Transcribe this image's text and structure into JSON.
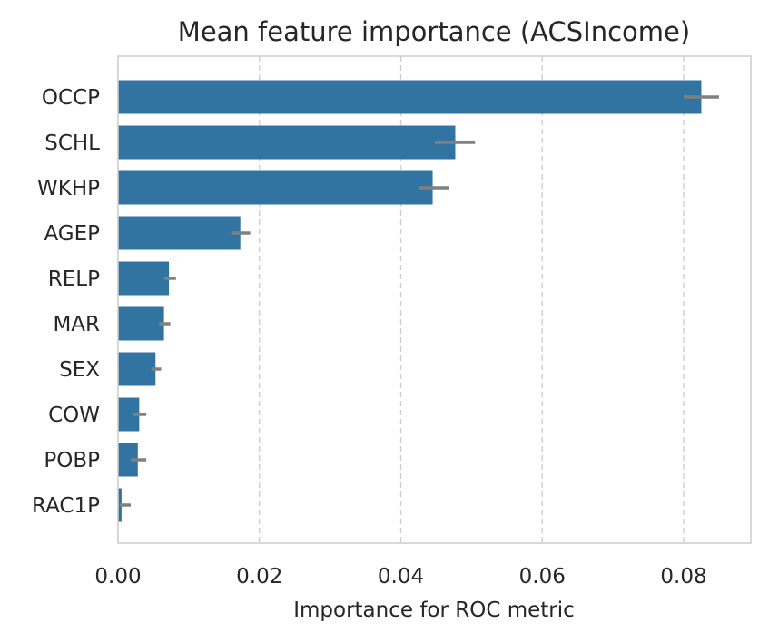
{
  "chart_data": {
    "type": "bar",
    "orientation": "horizontal",
    "title": "Mean feature importance (ACSIncome)",
    "xlabel": "Importance for ROC metric",
    "ylabel": "",
    "categories": [
      "OCCP",
      "SCHL",
      "WKHP",
      "AGEP",
      "RELP",
      "MAR",
      "SEX",
      "COW",
      "POBP",
      "RAC1P"
    ],
    "values": [
      0.0825,
      0.0477,
      0.0445,
      0.0173,
      0.0072,
      0.0065,
      0.0053,
      0.003,
      0.0028,
      0.0005
    ],
    "error": [
      [
        0.08,
        0.085
      ],
      [
        0.0448,
        0.0505
      ],
      [
        0.0425,
        0.0468
      ],
      [
        0.016,
        0.0187
      ],
      [
        0.0065,
        0.0082
      ],
      [
        0.0058,
        0.0074
      ],
      [
        0.0047,
        0.0061
      ],
      [
        0.0022,
        0.004
      ],
      [
        0.0018,
        0.004
      ],
      [
        0.0002,
        0.0018
      ]
    ],
    "xlim": [
      0,
      0.0895
    ],
    "xticks": [
      0.0,
      0.02,
      0.04,
      0.06,
      0.08
    ],
    "xtick_labels": [
      "0.00",
      "0.02",
      "0.04",
      "0.06",
      "0.08"
    ],
    "grid": "x-dashed",
    "colors": {
      "bar": "#3274a1",
      "error": "#808080",
      "grid": "#cccccc",
      "spine": "#cccccc"
    }
  }
}
